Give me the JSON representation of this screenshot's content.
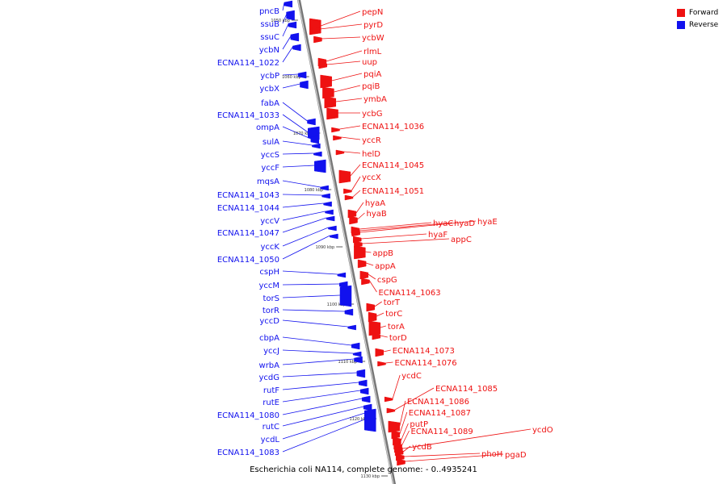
{
  "caption": "Escherichia coli NA114, complete genome: - 0..4935241",
  "legend": [
    {
      "label": "Forward",
      "color": "#ee1111"
    },
    {
      "label": "Reverse",
      "color": "#1111ee"
    }
  ],
  "colors": {
    "forward": "#ee1111",
    "reverse": "#1111ee",
    "backbone": "#999999"
  },
  "scale_ticks": [
    "1050 kbp",
    "1060 kbp",
    "1070 kbp",
    "1080 kbp",
    "1090 kbp",
    "1100 kbp",
    "1110 kbp",
    "1120 kbp",
    "1130 kbp"
  ],
  "reverse_genes": [
    "pncB",
    "ssuB",
    "ssuC",
    "ycbN",
    "ECNA114_1022",
    "ycbP",
    "ycbX",
    "fabA",
    "ECNA114_1033",
    "ompA",
    "sulA",
    "yccS",
    "yccF",
    "mqsA",
    "ECNA114_1043",
    "ECNA114_1044",
    "yccV",
    "ECNA114_1047",
    "yccK",
    "ECNA114_1050",
    "cspH",
    "yccM",
    "torS",
    "torR",
    "yccD",
    "cbpA",
    "yccJ",
    "wrbA",
    "ycdG",
    "rutF",
    "rutE",
    "ECNA114_1080",
    "rutC",
    "ycdL",
    "ECNA114_1083"
  ],
  "forward_genes": [
    "pepN",
    "pyrD",
    "ycbW",
    "rlmL",
    "uup",
    "pqiA",
    "pqiB",
    "ymbA",
    "ycbG",
    "ECNA114_1036",
    "yccR",
    "helD",
    "ECNA114_1045",
    "yccX",
    "ECNA114_1051",
    "hyaA",
    "hyaB",
    "hyaC",
    "hyaD",
    "hyaE",
    "hyaF",
    "appC",
    "appB",
    "appA",
    "cspG",
    "ECNA114_1063",
    "torT",
    "torC",
    "torA",
    "torD",
    "ECNA114_1073",
    "ECNA114_1076",
    "ycdC",
    "ECNA114_1085",
    "ECNA114_1086",
    "ECNA114_1087",
    "putP",
    "ECNA114_1089",
    "ycdO",
    "ycdB",
    "phoH",
    "pgaD"
  ]
}
